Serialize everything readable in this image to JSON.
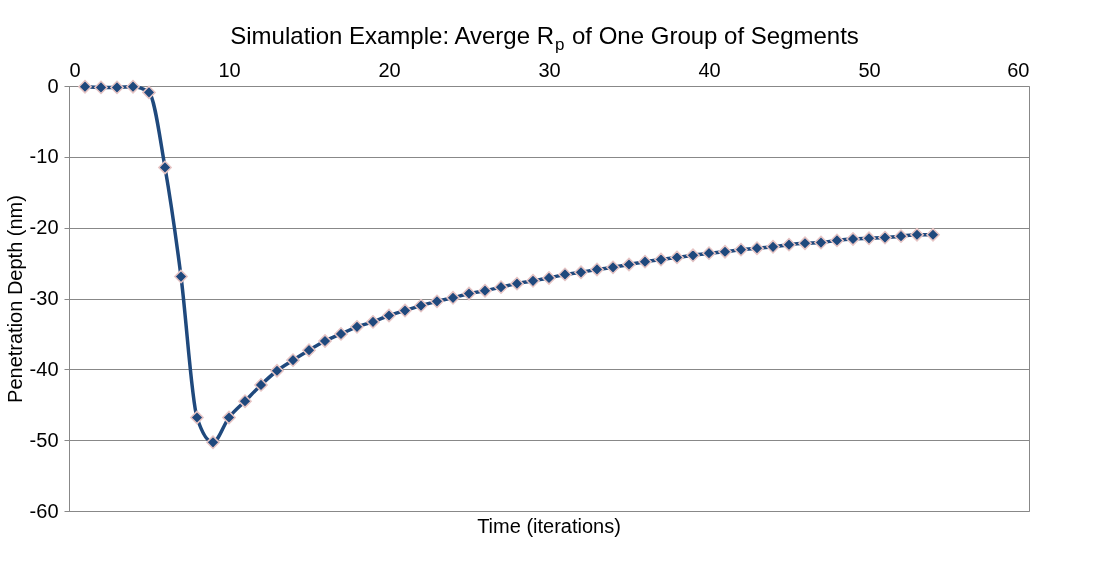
{
  "chart_data": {
    "type": "line",
    "title": "Simulation Example: Averge R$_{p}$ of One Group of Segments",
    "xlabel": "Time (iterations)",
    "ylabel": "Penetration Depth (nm)",
    "x": [
      1,
      2,
      3,
      4,
      5,
      6,
      7,
      8,
      9,
      10,
      11,
      12,
      13,
      14,
      15,
      16,
      17,
      18,
      19,
      20,
      21,
      22,
      23,
      24,
      25,
      26,
      27,
      28,
      29,
      30,
      31,
      32,
      33,
      34,
      35,
      36,
      37,
      38,
      39,
      40,
      41,
      42,
      43,
      44,
      45,
      46,
      47,
      48,
      49,
      50,
      51,
      52,
      53,
      54
    ],
    "series": [
      {
        "color": "#1f497d",
        "values": [
          -0.1,
          -0.2,
          -0.2,
          -0.1,
          -0.9,
          -11.5,
          -26.9,
          -46.8,
          -50.3,
          -46.8,
          -44.5,
          -42.2,
          -40.2,
          -38.7,
          -37.3,
          -36.0,
          -35.0,
          -34.0,
          -33.3,
          -32.4,
          -31.7,
          -31.0,
          -30.4,
          -29.9,
          -29.3,
          -28.9,
          -28.4,
          -27.9,
          -27.5,
          -27.1,
          -26.6,
          -26.3,
          -25.9,
          -25.6,
          -25.2,
          -24.8,
          -24.5,
          -24.2,
          -23.9,
          -23.6,
          -23.4,
          -23.1,
          -22.9,
          -22.7,
          -22.4,
          -22.2,
          -22.1,
          -21.8,
          -21.6,
          -21.5,
          -21.4,
          -21.2,
          -21.0,
          -21.0
        ]
      }
    ],
    "xlim": [
      0,
      60
    ],
    "xticks": [
      0,
      10,
      20,
      30,
      40,
      50,
      60
    ],
    "ylim": [
      -60,
      0
    ],
    "yticks": [
      -60,
      -50,
      -40,
      -30,
      -20,
      -10,
      0
    ],
    "grid": "y",
    "legend": false,
    "marker": "diamond",
    "line_style": "solid"
  }
}
